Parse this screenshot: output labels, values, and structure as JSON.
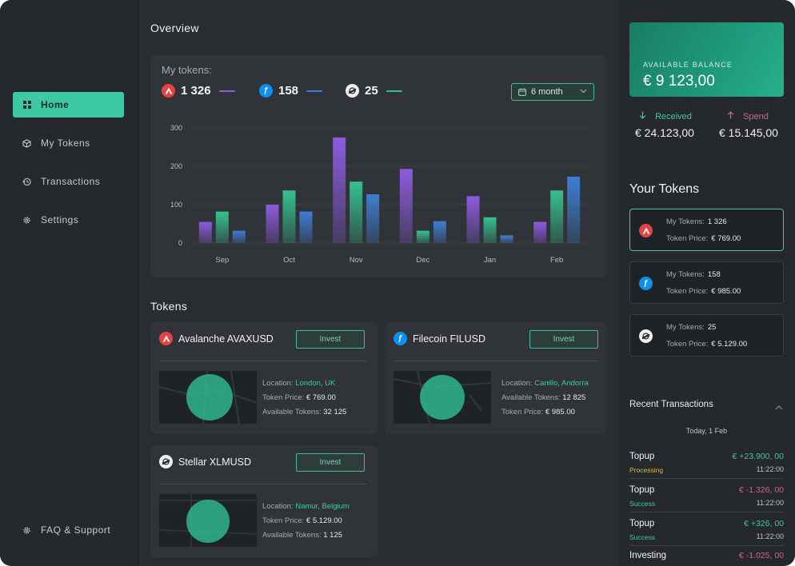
{
  "sidebar": {
    "items": [
      {
        "label": "Home",
        "icon": "grid-icon"
      },
      {
        "label": "My Tokens",
        "icon": "cube-icon"
      },
      {
        "label": "Transactions",
        "icon": "history-icon"
      },
      {
        "label": "Settings",
        "icon": "gear-icon"
      }
    ],
    "support": {
      "label": "FAQ & Support",
      "icon": "gear-icon"
    }
  },
  "overview": {
    "title": "Overview",
    "my_tokens_label": "My tokens:",
    "summary": [
      {
        "coin": "avalanche-icon",
        "value": "1 326",
        "color": "#8e5be0"
      },
      {
        "coin": "filecoin-icon",
        "value": "158",
        "color": "#3d7fd4"
      },
      {
        "coin": "stellar-icon",
        "value": "25",
        "color": "#35c28e"
      }
    ],
    "period": "6 month"
  },
  "chart_data": {
    "type": "bar",
    "categories": [
      "Sep",
      "Oct",
      "Nov",
      "Dec",
      "Jan",
      "Feb"
    ],
    "series": [
      {
        "color": "#8e5be0",
        "values": [
          55,
          100,
          275,
          193,
          122,
          55
        ]
      },
      {
        "color": "#35c28e",
        "values": [
          82,
          137,
          160,
          32,
          67,
          137
        ]
      },
      {
        "color": "#3d7fd4",
        "values": [
          32,
          82,
          127,
          57,
          20,
          173
        ]
      }
    ],
    "yticks": [
      "300",
      "200",
      "100",
      "0"
    ],
    "ylim": [
      0,
      300
    ],
    "grid": true
  },
  "tokens": {
    "title": "Tokens",
    "cards": [
      {
        "coin": "avalanche-icon",
        "name": "Avalanche AVAXUSD",
        "invest": "Invest",
        "location_label": "Location:",
        "location": "London, UK",
        "price_label": "Token Price:",
        "price": "€ 769.00",
        "available_label": "Available Tokens:",
        "available": "32 125"
      },
      {
        "coin": "filecoin-icon",
        "name": "Filecoin FILUSD",
        "invest": "Invest",
        "location_label": "Location:",
        "location": "Canillo, Andorra",
        "available_label": "Available Tokens:",
        "available": "12 825",
        "price_label": "Token Price:",
        "price": "€ 985.00"
      },
      {
        "coin": "stellar-icon",
        "name": "Stellar XLMUSD",
        "invest": "Invest",
        "location_label": "Location:",
        "location": "Namur, Belgium",
        "price_label": "Token Price:",
        "price": "€ 5.129.00",
        "available_label": "Available Tokens:",
        "available": "1 125"
      }
    ]
  },
  "balance": {
    "label": "AVAILABLE BALANCE",
    "amount": "€ 9 123,00",
    "received_label": "Received",
    "received_amount": "€ 24.123,00",
    "spend_label": "Spend",
    "spend_amount": "€ 15.145,00"
  },
  "your_tokens": {
    "title": "Your Tokens",
    "items": [
      {
        "coin": "avalanche-icon",
        "tokens_label": "My Tokens:",
        "tokens": "1 326",
        "price_label": "Token Price:",
        "price": "€ 769.00"
      },
      {
        "coin": "filecoin-icon",
        "tokens_label": "My Tokens:",
        "tokens": "158",
        "price_label": "Token Price:",
        "price": "€ 985.00"
      },
      {
        "coin": "stellar-icon",
        "tokens_label": "My Tokens:",
        "tokens": "25",
        "price_label": "Token Price:",
        "price": "€ 5.129.00"
      }
    ]
  },
  "transactions": {
    "title": "Recent Transactions",
    "date": "Today, 1 Feb",
    "items": [
      {
        "name": "Topup",
        "amount": "€ +23.900, 00",
        "status": "Processing",
        "time": "11:22:00"
      },
      {
        "name": "Topup",
        "amount": "€ -1.326, 00",
        "status": "Success",
        "time": "11:22:00"
      },
      {
        "name": "Topup",
        "amount": "€ +326, 00",
        "status": "Success",
        "time": "11:22:00"
      },
      {
        "name": "Investing",
        "amount": "€ -1.025, 00",
        "status": "",
        "time": ""
      }
    ]
  },
  "colors": {
    "accent": "#3cc9a3",
    "positive": "#3cc9a3",
    "negative": "#e0607a",
    "processing": "#e2b93b"
  }
}
